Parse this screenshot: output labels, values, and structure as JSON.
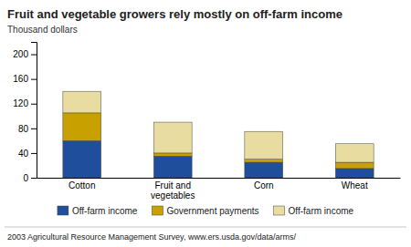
{
  "chart_data": {
    "type": "bar",
    "stacked": true,
    "title": "Fruit and vegetable growers rely mostly on off-farm income",
    "ylabel": "Thousand dollars",
    "source": "2003 Agricultural Resource Management Survey, www.ers.usda.gov/data/arms/",
    "categories": [
      "Cotton",
      "Fruit and\nvegetables",
      "Corn",
      "Wheat"
    ],
    "series": [
      {
        "name": "Off-farm income",
        "color": "#1f4e9c",
        "values": [
          60,
          35,
          25,
          15
        ]
      },
      {
        "name": "Government payments",
        "color": "#c8a000",
        "values": [
          45,
          5,
          5,
          10
        ]
      },
      {
        "name": "Off-farm income",
        "color": "#e8dca0",
        "values": [
          35,
          50,
          45,
          30
        ]
      }
    ],
    "ylim": [
      0,
      220
    ],
    "yticks": [
      0,
      40,
      80,
      120,
      160,
      200
    ],
    "grid": false,
    "legend": "bottom"
  }
}
